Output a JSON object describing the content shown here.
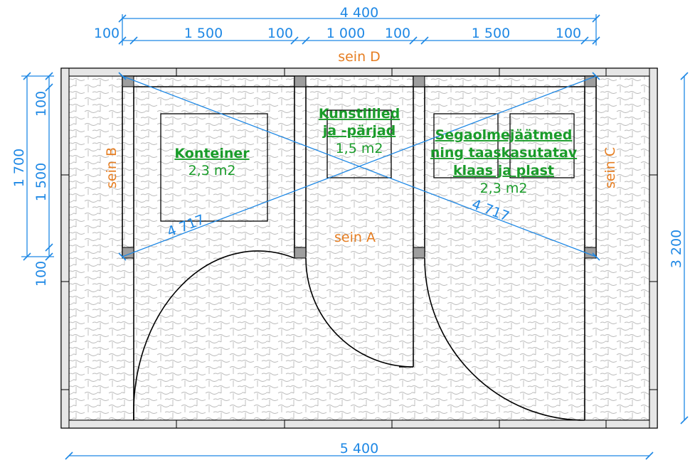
{
  "dimensions": {
    "total_top": "4 400",
    "top_segments": [
      "100",
      "1 500",
      "100",
      "1 000",
      "100",
      "1 500",
      "100"
    ],
    "bottom": "5 400",
    "left_total": "1 700",
    "left_segments": [
      "100",
      "1 500",
      "100"
    ],
    "right": "3 200",
    "diagonal_1": "4 717",
    "diagonal_2": "4 717"
  },
  "walls": {
    "d": "sein D",
    "a": "sein A",
    "b": "sein B",
    "c": "sein C"
  },
  "rooms": [
    {
      "title_lines": [
        "Konteiner"
      ],
      "area": "2,3 m2"
    },
    {
      "title_lines": [
        "Kunstlilled",
        "ja -pärjad"
      ],
      "area": "1,5 m2"
    },
    {
      "title_lines": [
        "Segaolmejäätmed",
        "ning taaskasutatav",
        "klaas ja plast"
      ],
      "area": "2,3 m2"
    }
  ],
  "colors": {
    "dimension": "#1e88e5",
    "wall_label": "#e67e22",
    "room_label": "#1a9c2a"
  }
}
